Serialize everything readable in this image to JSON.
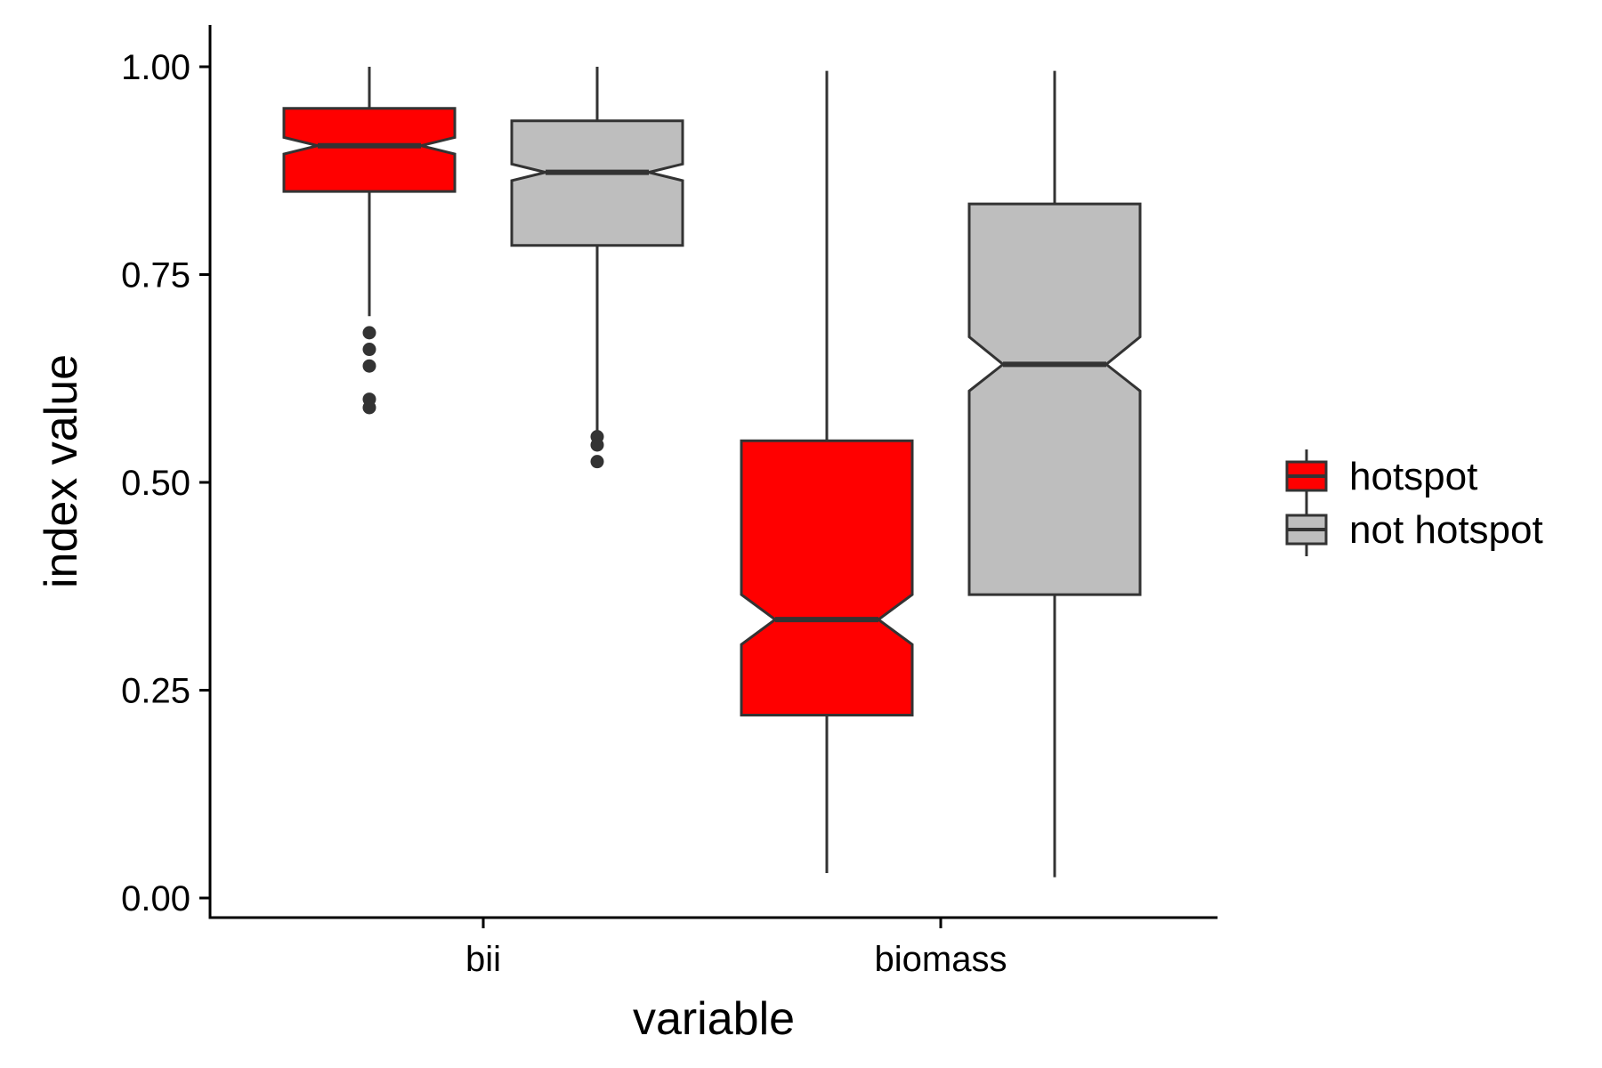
{
  "chart_data": {
    "type": "boxplot",
    "notched": true,
    "xlabel": "variable",
    "ylabel": "index value",
    "categories": [
      "bii",
      "biomass"
    ],
    "ylim": [
      -0.02,
      1.05
    ],
    "yticks": [
      0.0,
      0.25,
      0.5,
      0.75,
      1.0
    ],
    "ytick_labels": [
      "0.00",
      "0.25",
      "0.50",
      "0.75",
      "1.00"
    ],
    "grid": false,
    "legend": {
      "position": "right",
      "entries": [
        "hotspot",
        "not hotspot"
      ]
    },
    "series": [
      {
        "name": "hotspot",
        "color": "#ff0000",
        "boxes": [
          {
            "category": "bii",
            "whisker_low": 0.7,
            "q1": 0.85,
            "median": 0.905,
            "q3": 0.95,
            "whisker_high": 1.0,
            "notch_low": 0.895,
            "notch_high": 0.915,
            "outliers": [
              0.68,
              0.66,
              0.64,
              0.6,
              0.59
            ]
          },
          {
            "category": "biomass",
            "whisker_low": 0.03,
            "q1": 0.22,
            "median": 0.335,
            "q3": 0.55,
            "whisker_high": 0.995,
            "notch_low": 0.305,
            "notch_high": 0.365,
            "outliers": []
          }
        ]
      },
      {
        "name": "not hotspot",
        "color": "#bebebe",
        "boxes": [
          {
            "category": "bii",
            "whisker_low": 0.56,
            "q1": 0.785,
            "median": 0.873,
            "q3": 0.935,
            "whisker_high": 1.0,
            "notch_low": 0.863,
            "notch_high": 0.883,
            "outliers": [
              0.555,
              0.545,
              0.525
            ]
          },
          {
            "category": "biomass",
            "whisker_low": 0.025,
            "q1": 0.365,
            "median": 0.642,
            "q3": 0.835,
            "whisker_high": 0.995,
            "notch_low": 0.61,
            "notch_high": 0.675,
            "outliers": []
          }
        ]
      }
    ]
  }
}
